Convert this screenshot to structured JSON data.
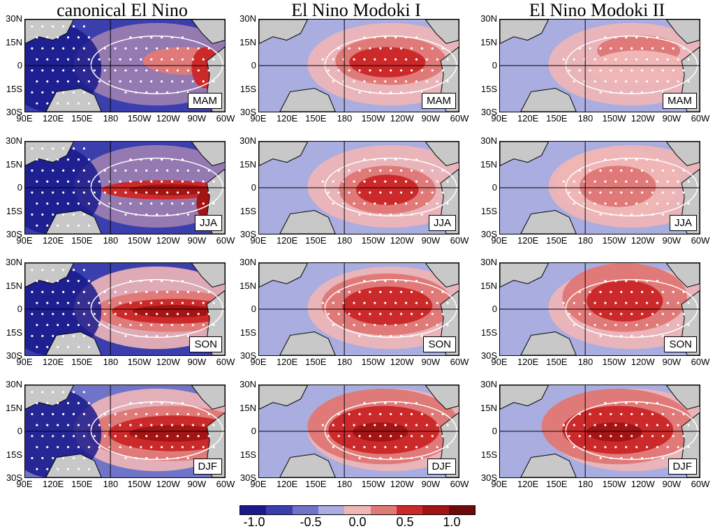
{
  "columns": [
    {
      "title": "canonical El Nino"
    },
    {
      "title": "El Nino Modoki I"
    },
    {
      "title": "El Nino Modoki II"
    }
  ],
  "seasons": [
    "MAM",
    "JJA",
    "SON",
    "DJF"
  ],
  "lat_ticks": [
    "30N",
    "15N",
    "0",
    "15S",
    "30S"
  ],
  "lon_ticks": [
    "90E",
    "120E",
    "150E",
    "180",
    "150W",
    "120W",
    "90W",
    "60W"
  ],
  "colorbar": {
    "colors": [
      "#1a1a8c",
      "#3b3fae",
      "#6f74c8",
      "#a9addf",
      "#f0b6b6",
      "#e07a78",
      "#cc2a2a",
      "#a31414",
      "#6e0a0a"
    ],
    "tick_labels": [
      "-1.0",
      "-0.5",
      "0.0",
      "0.5",
      "1.0"
    ]
  },
  "style": {
    "land_color": "#c8c8c8",
    "coast_color": "#000000",
    "contour_color": "#ffffff"
  }
}
